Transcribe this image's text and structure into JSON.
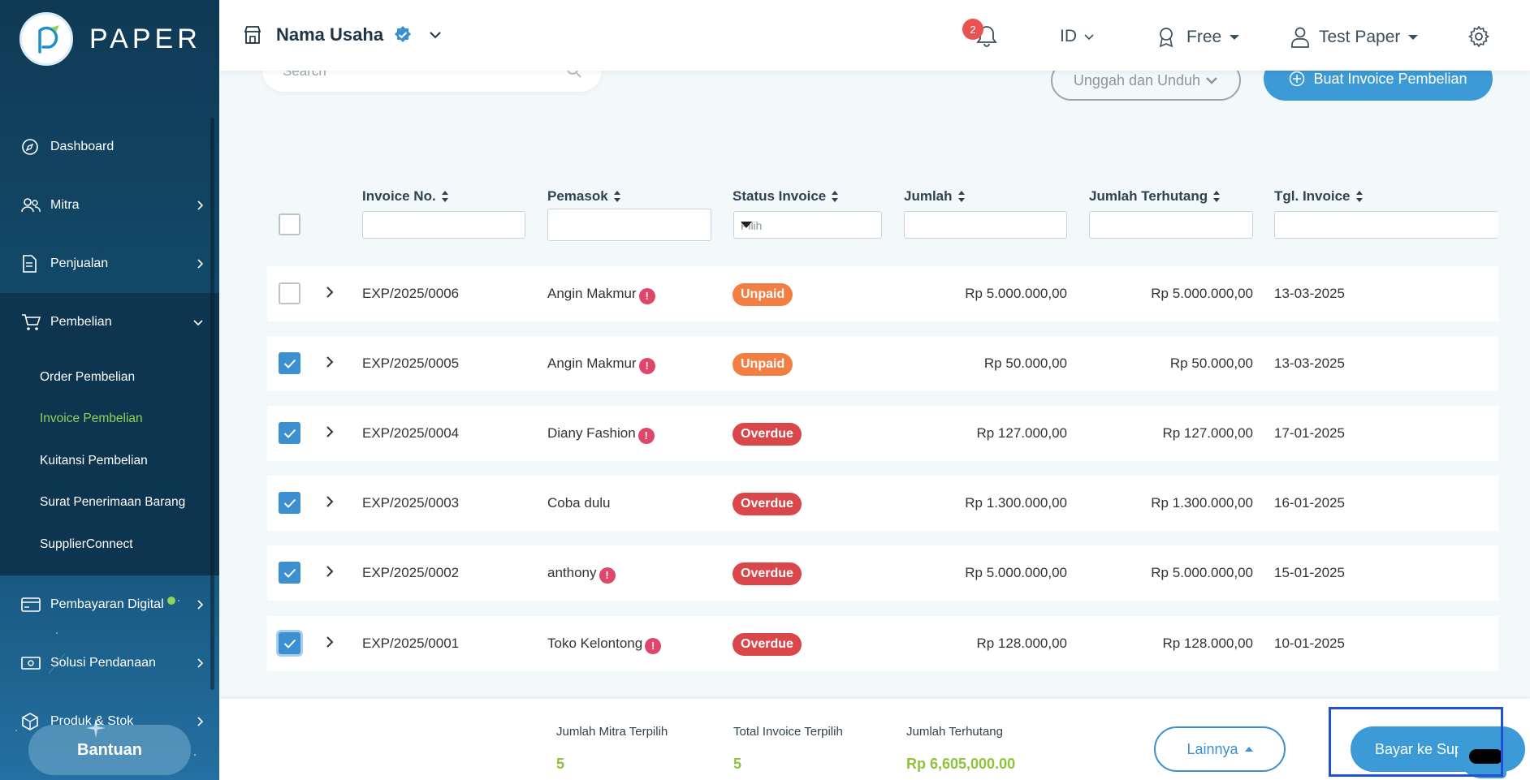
{
  "app": {
    "logo_text": "PAPER"
  },
  "sidebar": {
    "items": [
      {
        "label": "Dashboard",
        "icon": "compass-icon"
      },
      {
        "label": "Mitra",
        "icon": "users-icon"
      },
      {
        "label": "Penjualan",
        "icon": "document-icon"
      },
      {
        "label": "Pembelian",
        "icon": "cart-icon"
      }
    ],
    "sub_items": [
      {
        "label": "Order Pembelian"
      },
      {
        "label": "Invoice Pembelian"
      },
      {
        "label": "Kuitansi Pembelian"
      },
      {
        "label": "Surat Penerimaan Barang"
      },
      {
        "label": "SupplierConnect"
      }
    ],
    "items_after": [
      {
        "label": "Pembayaran Digital",
        "icon": "card-icon"
      },
      {
        "label": "Solusi Pendanaan",
        "icon": "money-icon"
      },
      {
        "label": "Produk & Stok",
        "icon": "box-icon"
      }
    ],
    "help_label": "Bantuan"
  },
  "header": {
    "business_name": "Nama Usaha",
    "notification_count": "2",
    "language": "ID",
    "plan": "Free",
    "user": "Test Paper"
  },
  "toolbar": {
    "search_placeholder": "Search",
    "upload_download_label": "Unggah dan Unduh",
    "create_label": "Buat Invoice Pembelian"
  },
  "table": {
    "columns": [
      "Invoice No.",
      "Pemasok",
      "Status Invoice",
      "Jumlah",
      "Jumlah Terhutang",
      "Tgl. Invoice"
    ],
    "status_filter_placeholder": "Pilih",
    "rows": [
      {
        "checked": false,
        "invoice": "EXP/2025/0006",
        "supplier": "Angin Makmur",
        "warn": true,
        "status": "Unpaid",
        "amount": "Rp 5.000.000,00",
        "due": "Rp 5.000.000,00",
        "date": "13-03-2025"
      },
      {
        "checked": true,
        "invoice": "EXP/2025/0005",
        "supplier": "Angin Makmur",
        "warn": true,
        "status": "Unpaid",
        "amount": "Rp 50.000,00",
        "due": "Rp 50.000,00",
        "date": "13-03-2025"
      },
      {
        "checked": true,
        "invoice": "EXP/2025/0004",
        "supplier": "Diany Fashion",
        "warn": true,
        "status": "Overdue",
        "amount": "Rp 127.000,00",
        "due": "Rp 127.000,00",
        "date": "17-01-2025"
      },
      {
        "checked": true,
        "invoice": "EXP/2025/0003",
        "supplier": "Coba dulu",
        "warn": false,
        "status": "Overdue",
        "amount": "Rp 1.300.000,00",
        "due": "Rp 1.300.000,00",
        "date": "16-01-2025"
      },
      {
        "checked": true,
        "invoice": "EXP/2025/0002",
        "supplier": "anthony",
        "warn": true,
        "status": "Overdue",
        "amount": "Rp 5.000.000,00",
        "due": "Rp 5.000.000,00",
        "date": "15-01-2025"
      },
      {
        "checked": true,
        "invoice": "EXP/2025/0001",
        "supplier": "Toko Kelontong",
        "warn": true,
        "status": "Overdue",
        "amount": "Rp 128.000,00",
        "due": "Rp 128.000,00",
        "date": "10-01-2025"
      }
    ]
  },
  "summary": {
    "partners_label": "Jumlah Mitra Terpilih",
    "partners_value": "5",
    "invoices_label": "Total Invoice Terpilih",
    "invoices_value": "5",
    "due_label": "Jumlah Terhutang",
    "due_value": "Rp 6,605,000.00",
    "more_label": "Lainnya",
    "pay_label": "Bayar ke Sup"
  },
  "colors": {
    "primary": "#3c9ad6",
    "unpaid": "#f27e44",
    "overdue": "#d9474b",
    "accent_green": "#8fc23c"
  }
}
